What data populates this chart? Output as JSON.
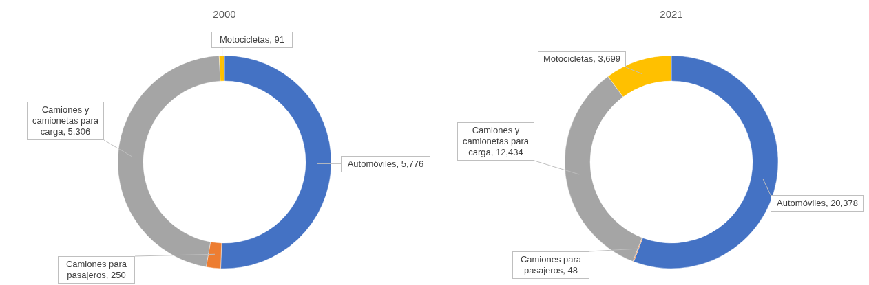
{
  "chart_data": [
    {
      "type": "donut",
      "title": "2000",
      "categories": [
        "Automóviles",
        "Camiones para pasajeros",
        "Camiones y camionetas para carga",
        "Motocicletas"
      ],
      "values": [
        5776,
        250,
        5306,
        91
      ],
      "value_labels": [
        "5,776",
        "250",
        "5,306",
        "91"
      ],
      "colors": [
        "#4472c4",
        "#ed7d31",
        "#a5a5a5",
        "#ffc000"
      ]
    },
    {
      "type": "donut",
      "title": "2021",
      "categories": [
        "Automóviles",
        "Camiones para pasajeros",
        "Camiones y camionetas para carga",
        "Motocicletas"
      ],
      "values": [
        20378,
        48,
        12434,
        3699
      ],
      "value_labels": [
        "20,378",
        "48",
        "12,434",
        "3,699"
      ],
      "colors": [
        "#4472c4",
        "#ed7d31",
        "#a5a5a5",
        "#ffc000"
      ]
    }
  ]
}
